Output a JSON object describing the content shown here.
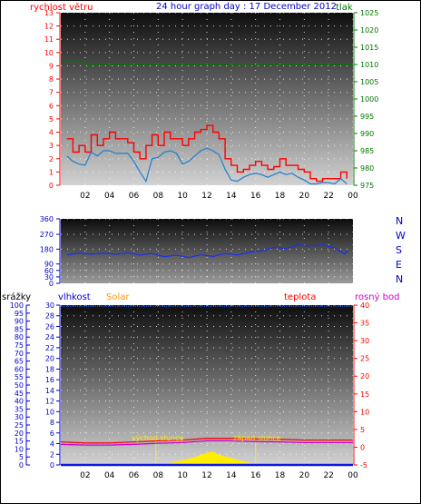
{
  "colors": {
    "wind": "#ff0000",
    "gust_line": "#1e7fd0",
    "pressure": "#007700",
    "humidity": "#1018e0",
    "temperature": "#ff0000",
    "dewpoint": "#cc00cc",
    "solar": "#ffee00",
    "rain_axis": "#0000cc",
    "humidity_axis": "#0000cc",
    "solar_label": "#ff9900",
    "title": "#0000cc"
  },
  "top": {
    "title": "24 hour graph day : 17 December 2012",
    "left_label": "rychlost větru",
    "right_label": "tlak"
  },
  "mid": {
    "compass": [
      "N",
      "W",
      "S",
      "E",
      "N"
    ]
  },
  "bottom": {
    "labels": {
      "rain": "srážky",
      "humidity": "vlhkost",
      "solar": "Solar",
      "temperature": "teplota",
      "dewpoint": "rosný bod"
    },
    "sunrise": "východ slunce",
    "sunset": "západ slunce"
  },
  "chart_data": [
    {
      "type": "line",
      "title": "24 hour graph day : 17 December 2012",
      "x_ticks": [
        "02",
        "04",
        "06",
        "08",
        "10",
        "12",
        "14",
        "16",
        "18",
        "20",
        "22",
        "00"
      ],
      "y_left": {
        "label": "rychlost větru",
        "ticks": [
          0,
          1,
          2,
          3,
          4,
          5,
          6,
          7,
          8,
          9,
          10,
          11,
          12,
          13
        ],
        "range": [
          0,
          13
        ]
      },
      "y_right": {
        "label": "tlak",
        "ticks": [
          975,
          980,
          985,
          990,
          995,
          1000,
          1005,
          1010,
          1015,
          1020,
          1025
        ],
        "range": [
          975,
          1025
        ]
      },
      "series": [
        {
          "name": "rychlost větru",
          "axis": "left",
          "x": [
            0.5,
            1,
            1.5,
            2,
            2.5,
            3,
            3.5,
            4,
            4.5,
            5,
            5.5,
            6,
            6.5,
            7,
            7.5,
            8,
            8.5,
            9,
            9.5,
            10,
            10.5,
            11,
            11.5,
            12,
            12.5,
            13,
            13.5,
            14,
            14.5,
            15,
            15.5,
            16,
            16.5,
            17,
            17.5,
            18,
            18.5,
            19,
            19.5,
            20,
            20.5,
            21,
            21.5,
            22,
            22.5,
            23,
            23.5
          ],
          "values": [
            3.5,
            2.5,
            3,
            2.5,
            3.8,
            3,
            3.5,
            4,
            3.5,
            3.5,
            3.2,
            2.5,
            2,
            3,
            3.8,
            3,
            4,
            3.5,
            3.5,
            3,
            3.5,
            4,
            4.2,
            4.5,
            4,
            3.5,
            2,
            1.5,
            1,
            1.2,
            1.5,
            1.8,
            1.5,
            1.2,
            1.4,
            2,
            1.5,
            1.5,
            1.2,
            1,
            0.5,
            0.3,
            0.5,
            0.5,
            0.5,
            1,
            0.5
          ]
        },
        {
          "name": "wind average",
          "axis": "left",
          "x": [
            0.5,
            1,
            1.5,
            2,
            2.5,
            3,
            3.5,
            4,
            4.5,
            5,
            5.5,
            6,
            6.5,
            7,
            7.5,
            8,
            8.5,
            9,
            9.5,
            10,
            10.5,
            11,
            11.5,
            12,
            12.5,
            13,
            13.5,
            14,
            14.5,
            15,
            15.5,
            16,
            16.5,
            17,
            17.5,
            18,
            18.5,
            19,
            19.5,
            20,
            20.5,
            21,
            21.5,
            22,
            22.5,
            23,
            23.5
          ],
          "values": [
            2.2,
            1.8,
            1.6,
            1.5,
            2.5,
            2.2,
            2.6,
            2.6,
            2.4,
            2.4,
            2.4,
            1.8,
            1,
            0.3,
            2,
            2.1,
            2.5,
            2.6,
            2.4,
            1.6,
            1.8,
            2.2,
            2.6,
            2.8,
            2.6,
            2.3,
            1.2,
            0.4,
            0.3,
            0.6,
            0.8,
            0.9,
            0.8,
            0.6,
            0.8,
            1,
            0.8,
            0.9,
            0.6,
            0.4,
            0.1,
            0.1,
            0.2,
            0.2,
            0.1,
            0.5,
            0.1
          ]
        },
        {
          "name": "tlak",
          "axis": "right",
          "x": [
            0,
            2,
            2,
            6,
            10,
            14,
            14,
            20,
            24
          ],
          "values": [
            1011,
            1011,
            1010,
            1010,
            1010,
            1010,
            1009.8,
            1010,
            1010
          ]
        }
      ]
    },
    {
      "type": "line",
      "y_ticks": [
        0,
        30,
        60,
        90,
        180,
        270,
        360
      ],
      "y_range": [
        0,
        360
      ],
      "compass": [
        "N",
        "W",
        "S",
        "E",
        "N"
      ],
      "series": [
        {
          "name": "wind direction",
          "x": [
            0.5,
            1.5,
            2.5,
            3.5,
            4.5,
            5.5,
            6.5,
            7.5,
            8.5,
            9.5,
            10.5,
            11.5,
            12.5,
            13.5,
            14.5,
            15.5,
            16.5,
            17.5,
            18.5,
            19.5,
            20.5,
            21.5,
            22.5,
            23.3,
            23.6
          ],
          "values": [
            145,
            150,
            155,
            150,
            155,
            152,
            150,
            148,
            140,
            138,
            135,
            140,
            142,
            148,
            150,
            155,
            175,
            185,
            190,
            200,
            205,
            200,
            195,
            150,
            175
          ]
        }
      ]
    },
    {
      "type": "line",
      "y_left_rain": {
        "label": "srážky",
        "ticks": [
          0,
          5,
          10,
          15,
          20,
          25,
          30,
          35,
          40,
          45,
          50,
          55,
          60,
          65,
          70,
          75,
          80,
          85,
          90,
          95,
          100
        ],
        "range": [
          0,
          100
        ]
      },
      "y_left_humidity": {
        "label": "vlhkost",
        "ticks": [
          0,
          2,
          4,
          6,
          8,
          10,
          12,
          14,
          16,
          18,
          20,
          22,
          24,
          26,
          28,
          30
        ],
        "range": [
          0,
          30
        ]
      },
      "y_right": {
        "label": "teplota",
        "ticks": [
          -5,
          0,
          5,
          10,
          15,
          20,
          25,
          30,
          35,
          40
        ],
        "range": [
          -5,
          40
        ]
      },
      "x_ticks": [
        "02",
        "04",
        "06",
        "08",
        "10",
        "12",
        "14",
        "16",
        "18",
        "20",
        "22",
        "00"
      ],
      "sunrise_hour": 7.8,
      "sunset_hour": 16,
      "series": [
        {
          "name": "vlhkost",
          "axis": "humidity",
          "x": [
            0,
            24
          ],
          "values": [
            29.8,
            29.8
          ]
        },
        {
          "name": "teplota",
          "axis": "right",
          "x": [
            0,
            2,
            4,
            6,
            8,
            10,
            12,
            14,
            16,
            18,
            20,
            22,
            24
          ],
          "values": [
            1.5,
            1.2,
            1.2,
            1.5,
            1.8,
            2,
            2.5,
            2.5,
            2.3,
            2.2,
            2,
            2,
            2
          ]
        },
        {
          "name": "rosný bod",
          "axis": "right",
          "x": [
            0,
            2,
            4,
            6,
            8,
            10,
            12,
            14,
            16,
            18,
            20,
            22,
            24
          ],
          "values": [
            0.8,
            0.6,
            0.6,
            0.8,
            1.1,
            1.3,
            1.8,
            1.8,
            1.6,
            1.5,
            1.3,
            1.3,
            1.3
          ]
        },
        {
          "name": "Solar",
          "axis": "humidity",
          "x": [
            7.8,
            9,
            10,
            11,
            12,
            12.5,
            13,
            14,
            15,
            16
          ],
          "values": [
            0,
            0.3,
            0.8,
            1.4,
            2.2,
            2.4,
            1.8,
            1.2,
            0.6,
            0
          ]
        },
        {
          "name": "srážky",
          "axis": "rain",
          "x": [
            0,
            24
          ],
          "values": [
            0,
            0
          ]
        }
      ]
    }
  ]
}
